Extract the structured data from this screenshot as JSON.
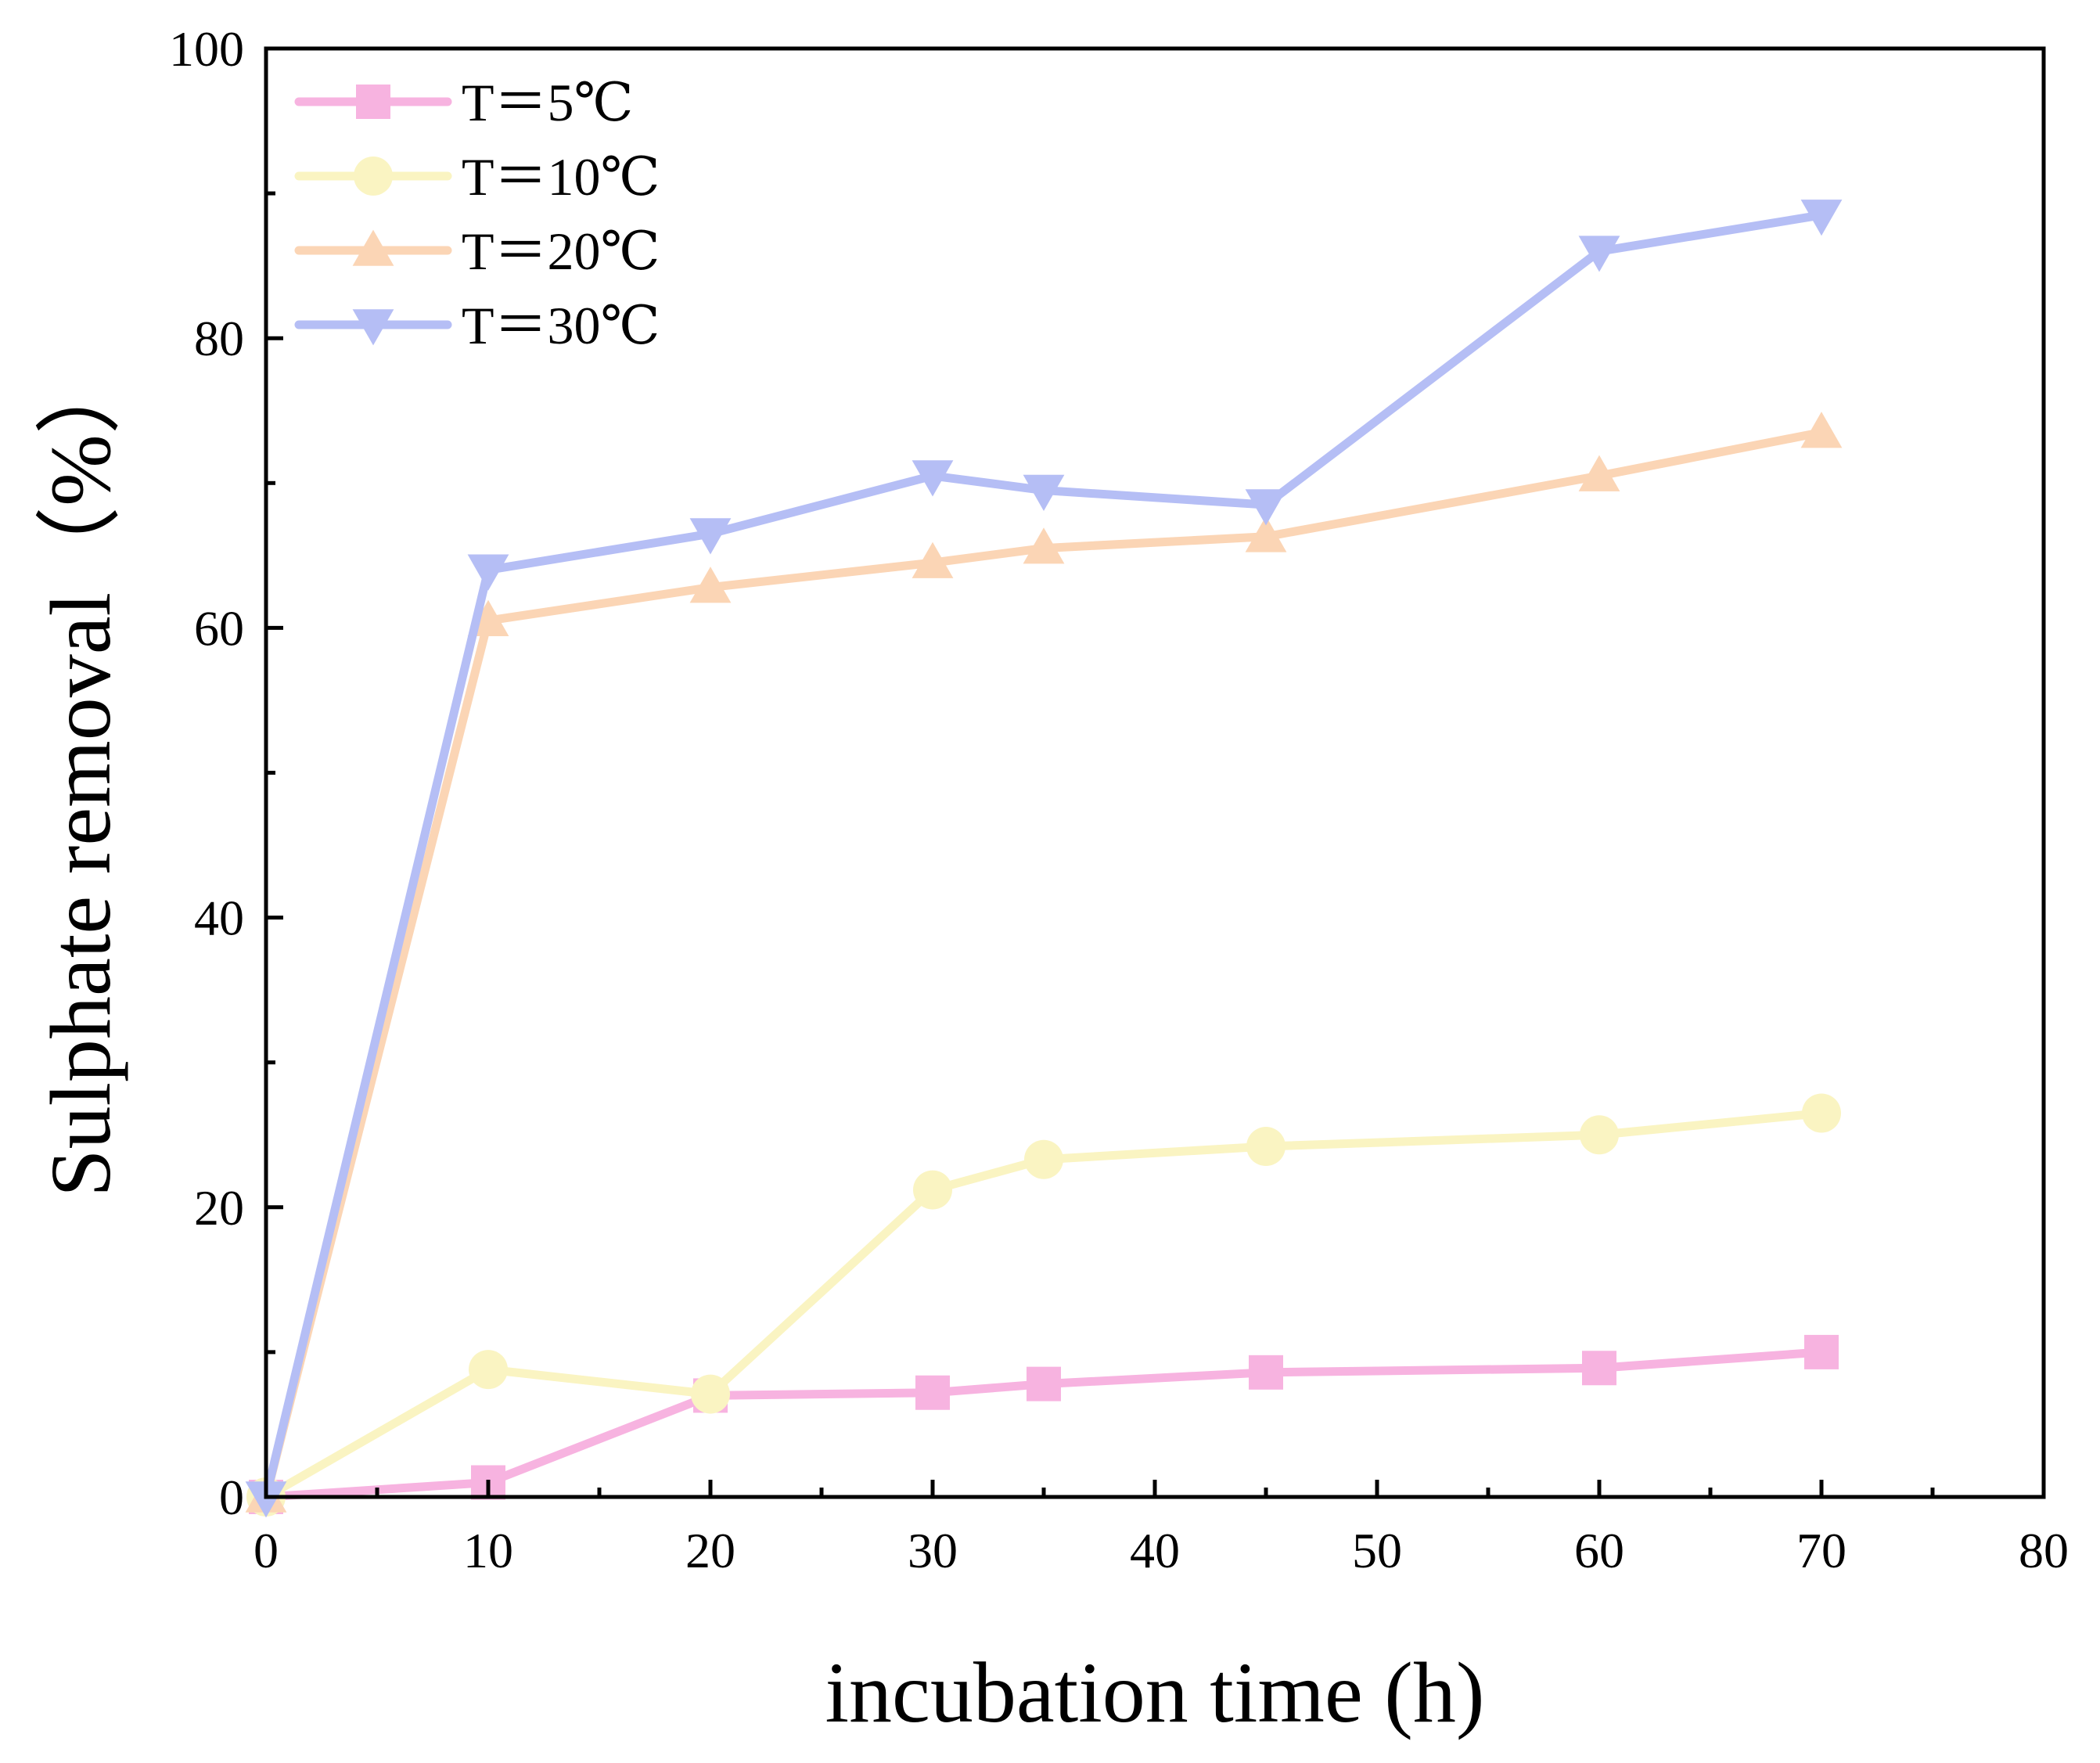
{
  "chart_data": {
    "type": "line",
    "title": "",
    "xlabel": "incubation time (h)",
    "ylabel": "Sulphate removal（%）",
    "xlim": [
      0,
      80
    ],
    "ylim": [
      0,
      100
    ],
    "xticks": [
      0,
      10,
      20,
      30,
      40,
      50,
      60,
      70,
      80
    ],
    "xtick_labels": [
      "0",
      "10",
      "20",
      "30",
      "40",
      "50",
      "60",
      "70",
      "80"
    ],
    "yticks": [
      0,
      20,
      40,
      60,
      80,
      100
    ],
    "ytick_labels": [
      "0",
      "20",
      "40",
      "60",
      "80",
      "100"
    ],
    "grid": false,
    "legend_position": "top-left",
    "series": [
      {
        "name": "T＝5℃",
        "color": "#F7B3E0",
        "marker": "square",
        "x": [
          0,
          10,
          20,
          30,
          35,
          45,
          60,
          70
        ],
        "y": [
          0,
          1,
          7,
          7.2,
          7.8,
          8.6,
          8.9,
          10
        ]
      },
      {
        "name": "T＝10℃",
        "color": "#FAF4C2",
        "marker": "circle",
        "x": [
          0,
          10,
          20,
          30,
          35,
          45,
          60,
          70
        ],
        "y": [
          0,
          8.8,
          7.1,
          21.2,
          23.3,
          24.2,
          25,
          26.5
        ]
      },
      {
        "name": "T＝20℃",
        "color": "#FBD5B5",
        "marker": "triangle-up",
        "x": [
          0,
          10,
          20,
          30,
          35,
          45,
          60,
          70
        ],
        "y": [
          0,
          60.5,
          62.8,
          64.5,
          65.5,
          66.3,
          70.5,
          73.5
        ]
      },
      {
        "name": "T＝30℃",
        "color": "#B5BEF5",
        "marker": "triangle-down",
        "x": [
          0,
          10,
          20,
          30,
          35,
          45,
          60,
          70
        ],
        "y": [
          0,
          64,
          66.5,
          70.5,
          69.5,
          68.5,
          86,
          88.5
        ]
      }
    ]
  }
}
